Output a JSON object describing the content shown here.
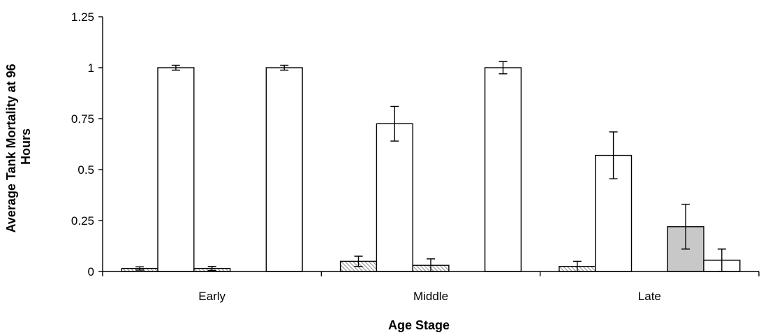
{
  "chart_data": {
    "type": "bar",
    "title": "",
    "xlabel": "Age Stage",
    "ylabel_lines": [
      "Average Tank Mortality at 96",
      "Hours"
    ],
    "categories": [
      "Early",
      "Middle",
      "Late"
    ],
    "ylim": [
      0,
      1.25
    ],
    "yticks": [
      0,
      0.25,
      0.5,
      0.75,
      1,
      1.25
    ],
    "ytick_labels": [
      "0",
      "0.25",
      "0.5",
      "0.75",
      "1",
      "1.25"
    ],
    "grid": false,
    "legend": "none",
    "series": [
      {
        "fill": "hatch",
        "color": "#9a9a9a",
        "values": [
          0.015,
          0.05,
          0.025
        ],
        "errors": [
          0.008,
          0.025,
          0.025
        ]
      },
      {
        "fill": "solid",
        "color": "#ffffff",
        "values": [
          1.0,
          0.725,
          0.57
        ],
        "errors": [
          0.012,
          0.085,
          0.115
        ]
      },
      {
        "fill": "hatch",
        "color": "#9a9a9a",
        "values": [
          0.015,
          0.03,
          null
        ],
        "errors": [
          0.01,
          0.032,
          null
        ]
      },
      {
        "fill": "solid",
        "color": "#c8c8c8",
        "values": [
          null,
          null,
          0.22
        ],
        "errors": [
          null,
          null,
          0.11
        ]
      },
      {
        "fill": "solid",
        "color": "#ffffff",
        "values": [
          1.0,
          1.0,
          0.055
        ],
        "errors": [
          0.012,
          0.03,
          0.055
        ]
      }
    ]
  }
}
